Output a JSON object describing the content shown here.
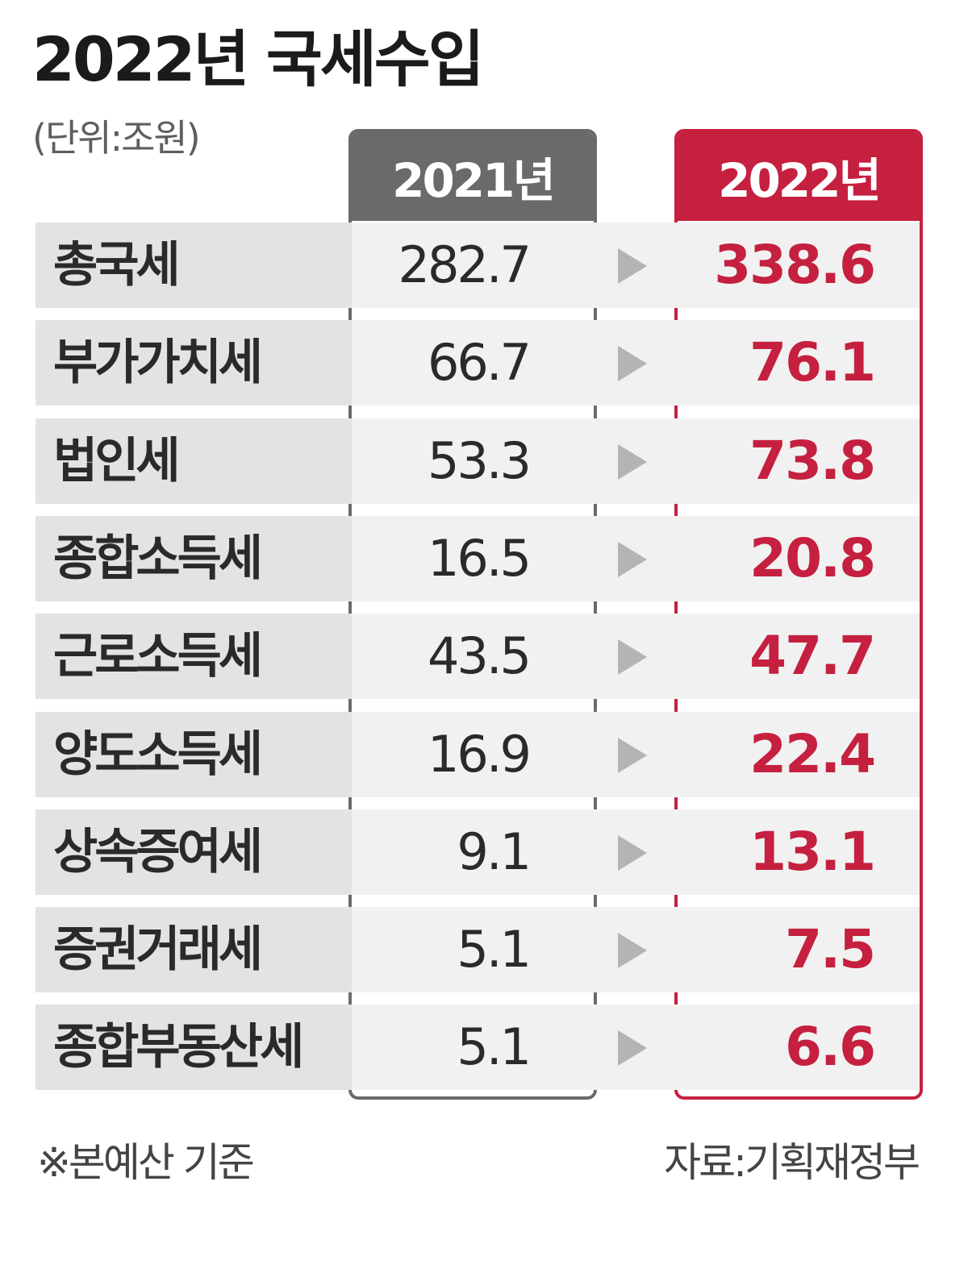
{
  "header": {
    "title": "2022년 국세수입",
    "unit": "(단위:조원)"
  },
  "columns": {
    "left": "2021년",
    "right": "2022년"
  },
  "colors": {
    "accent_red": "#c5203f",
    "header_gray": "#6a6a6a",
    "row_gray": "#e3e3e3",
    "arrow_gray": "#b4b4b4"
  },
  "chart_data": {
    "type": "table",
    "title": "2022년 국세수입",
    "unit": "(단위:조원)",
    "columns": [
      "2021년",
      "2022년"
    ],
    "categories": [
      "총국세",
      "부가가치세",
      "법인세",
      "종합소득세",
      "근로소득세",
      "양도소득세",
      "상속증여세",
      "증권거래세",
      "종합부동산세"
    ],
    "series": [
      {
        "name": "2021년",
        "values": [
          282.7,
          66.7,
          53.3,
          16.5,
          43.5,
          16.9,
          9.1,
          5.1,
          5.1
        ]
      },
      {
        "name": "2022년",
        "values": [
          338.6,
          76.1,
          73.8,
          20.8,
          47.7,
          22.4,
          13.1,
          7.5,
          6.6
        ]
      }
    ],
    "rows": [
      {
        "label": "총국세",
        "v2021": "282.7",
        "v2022": "338.6"
      },
      {
        "label": "부가가치세",
        "v2021": "66.7",
        "v2022": "76.1"
      },
      {
        "label": "법인세",
        "v2021": "53.3",
        "v2022": "73.8"
      },
      {
        "label": "종합소득세",
        "v2021": "16.5",
        "v2022": "20.8"
      },
      {
        "label": "근로소득세",
        "v2021": "43.5",
        "v2022": "47.7"
      },
      {
        "label": "양도소득세",
        "v2021": "16.9",
        "v2022": "22.4"
      },
      {
        "label": "상속증여세",
        "v2021": "9.1",
        "v2022": "13.1"
      },
      {
        "label": "증권거래세",
        "v2021": "5.1",
        "v2022": "7.5"
      },
      {
        "label": "종합부동산세",
        "v2021": "5.1",
        "v2022": "6.6"
      }
    ]
  },
  "footer": {
    "note": "※본예산 기준",
    "source": "자료:기획재정부"
  }
}
